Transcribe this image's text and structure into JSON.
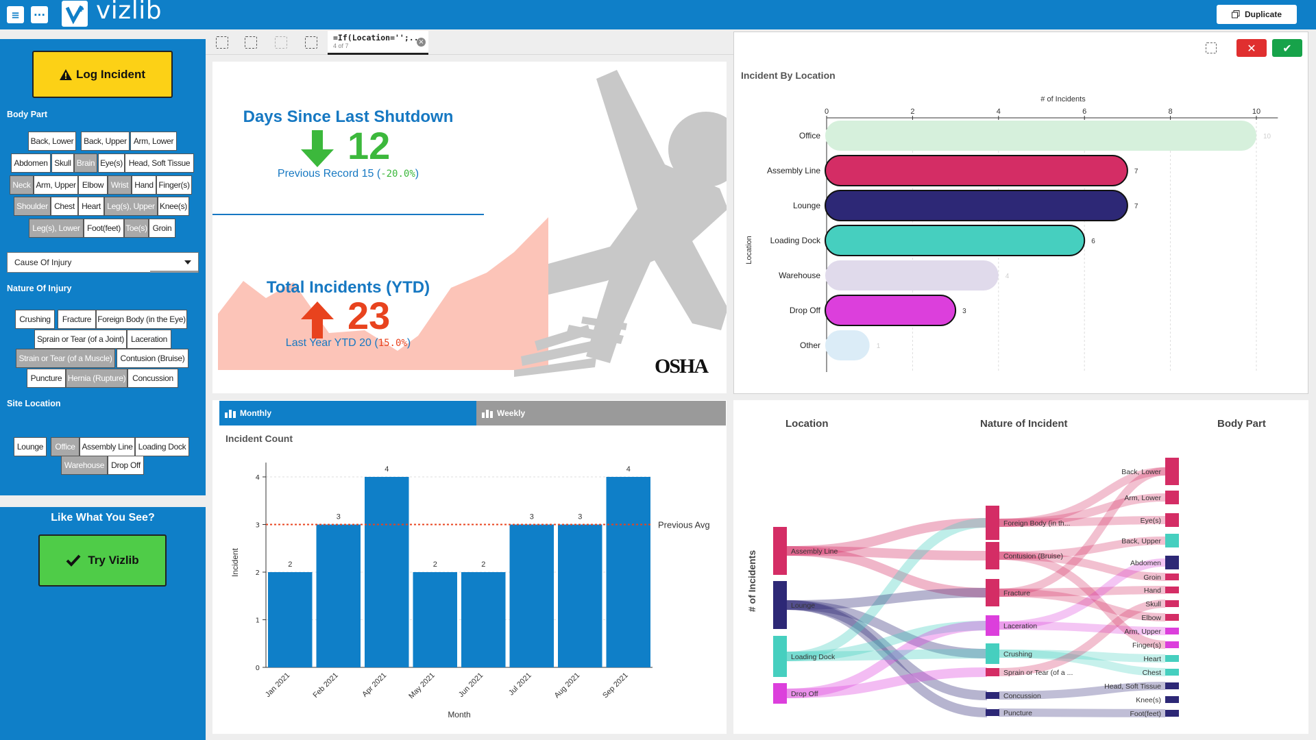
{
  "app": {
    "logo_text": "vizlib",
    "duplicate_label": "Duplicate"
  },
  "sidebar": {
    "log_incident": "Log Incident",
    "body_part_label": "Body Part",
    "body_parts": [
      {
        "label": "Back, Lower",
        "selected": false
      },
      {
        "label": "Back, Upper",
        "selected": false
      },
      {
        "label": "Arm, Lower",
        "selected": false
      },
      {
        "label": "Abdomen",
        "selected": false
      },
      {
        "label": "Skull",
        "selected": false
      },
      {
        "label": "Brain",
        "selected": true
      },
      {
        "label": "Eye(s)",
        "selected": false
      },
      {
        "label": "Head, Soft Tissue",
        "selected": false
      },
      {
        "label": "Neck",
        "selected": true
      },
      {
        "label": "Arm, Upper",
        "selected": false
      },
      {
        "label": "Elbow",
        "selected": false
      },
      {
        "label": "Wrist",
        "selected": true
      },
      {
        "label": "Hand",
        "selected": false
      },
      {
        "label": "Finger(s)",
        "selected": false
      },
      {
        "label": "Shoulder",
        "selected": true
      },
      {
        "label": "Chest",
        "selected": false
      },
      {
        "label": "Heart",
        "selected": false
      },
      {
        "label": "Leg(s), Upper",
        "selected": true
      },
      {
        "label": "Knee(s)",
        "selected": false
      },
      {
        "label": "Leg(s), Lower",
        "selected": true
      },
      {
        "label": "Foot(feet)",
        "selected": false
      },
      {
        "label": "Toe(s)",
        "selected": true
      },
      {
        "label": "Groin",
        "selected": false
      }
    ],
    "cause_dropdown": "Cause Of Injury",
    "nature_label": "Nature Of Injury",
    "nature": [
      {
        "label": "Crushing",
        "selected": false
      },
      {
        "label": "Fracture",
        "selected": false
      },
      {
        "label": "Foreign Body (in the Eye)",
        "selected": false
      },
      {
        "label": "Sprain or Tear (of a Joint)",
        "selected": false
      },
      {
        "label": "Laceration",
        "selected": false
      },
      {
        "label": "Strain or Tear (of a Muscle)",
        "selected": true
      },
      {
        "label": "Contusion (Bruise)",
        "selected": false
      },
      {
        "label": "Puncture",
        "selected": false
      },
      {
        "label": "Hernia (Rupture)",
        "selected": true
      },
      {
        "label": "Concussion",
        "selected": false
      }
    ],
    "site_label": "Site Location",
    "sites": [
      {
        "label": "Lounge",
        "selected": false
      },
      {
        "label": "Office",
        "selected": true
      },
      {
        "label": "Assembly Line",
        "selected": false
      },
      {
        "label": "Loading Dock",
        "selected": false
      },
      {
        "label": "Warehouse",
        "selected": true
      },
      {
        "label": "Drop Off",
        "selected": false
      }
    ],
    "like_title": "Like What You See?",
    "try_label": "Try Vizlib"
  },
  "toolbar": {
    "selection_expr": "=If(Location='';...",
    "selection_count": "4 of 7"
  },
  "kpi": {
    "days_title": "Days Since Last Shutdown",
    "days_value": "12",
    "days_sub_prefix": "Previous Record 15 (",
    "days_sub_pct": "-20.0%",
    "days_sub_suffix": ")",
    "total_title": "Total Incidents (YTD)",
    "total_value": "23",
    "total_sub_prefix": "Last Year YTD 20 (",
    "total_sub_pct": "15.0%",
    "total_sub_suffix": ")",
    "osha_logo": "OSHA",
    "colors": {
      "title": "#1678c2",
      "good": "#3cb83c",
      "bad": "#e8431e"
    }
  },
  "location_chart": {
    "title": "Incident By Location",
    "x_axis_label": "# of Incidents",
    "y_axis_label": "Location",
    "ticks": [
      "0",
      "2",
      "4",
      "6",
      "8",
      "10"
    ],
    "rows": [
      {
        "label": "Office",
        "value": 10,
        "color": "#d6f0dc",
        "faded": true
      },
      {
        "label": "Assembly Line",
        "value": 7,
        "color": "#d42d65",
        "faded": false
      },
      {
        "label": "Lounge",
        "value": 7,
        "color": "#2d2876",
        "faded": false
      },
      {
        "label": "Loading Dock",
        "value": 6,
        "color": "#46cfbf",
        "faded": false
      },
      {
        "label": "Warehouse",
        "value": 4,
        "color": "#e0daeb",
        "faded": true
      },
      {
        "label": "Drop Off",
        "value": 3,
        "color": "#dc3fdc",
        "faded": false
      },
      {
        "label": "Other",
        "value": 1,
        "color": "#dbecf7",
        "faded": true
      }
    ]
  },
  "monthly": {
    "tab_monthly": "Monthly",
    "tab_weekly": "Weekly",
    "title": "Incident Count",
    "y_label": "Incident",
    "x_label": "Month",
    "ref_label": "Previous Avg",
    "ref_value": 3,
    "y_ticks": [
      "0",
      "1",
      "2",
      "3",
      "4"
    ],
    "months": [
      {
        "label": "Jan 2021",
        "value": 2
      },
      {
        "label": "Feb 2021",
        "value": 3
      },
      {
        "label": "Apr 2021",
        "value": 4
      },
      {
        "label": "May 2021",
        "value": 2
      },
      {
        "label": "Jun 2021",
        "value": 2
      },
      {
        "label": "Jul 2021",
        "value": 3
      },
      {
        "label": "Aug 2021",
        "value": 3
      },
      {
        "label": "Sep 2021",
        "value": 4
      }
    ]
  },
  "sankey": {
    "h_location": "Location",
    "h_nature": "Nature of Incident",
    "h_body": "Body Part",
    "y_label": "# of Incidents",
    "locations": [
      "Assembly Line",
      "Lounge",
      "Loading Dock",
      "Drop Off"
    ],
    "natures": [
      "Foreign Body (in th...",
      "Contusion (Bruise)",
      "Fracture",
      "Laceration",
      "Crushing",
      "Sprain or Tear (of a ...",
      "Concussion",
      "Puncture"
    ],
    "body_parts": [
      "Back, Lower",
      "Arm, Lower",
      "Eye(s)",
      "Back, Upper",
      "Abdomen",
      "Groin",
      "Hand",
      "Skull",
      "Elbow",
      "Arm, Upper",
      "Finger(s)",
      "Heart",
      "Chest",
      "Head, Soft Tissue",
      "Knee(s)",
      "Foot(feet)"
    ]
  }
}
